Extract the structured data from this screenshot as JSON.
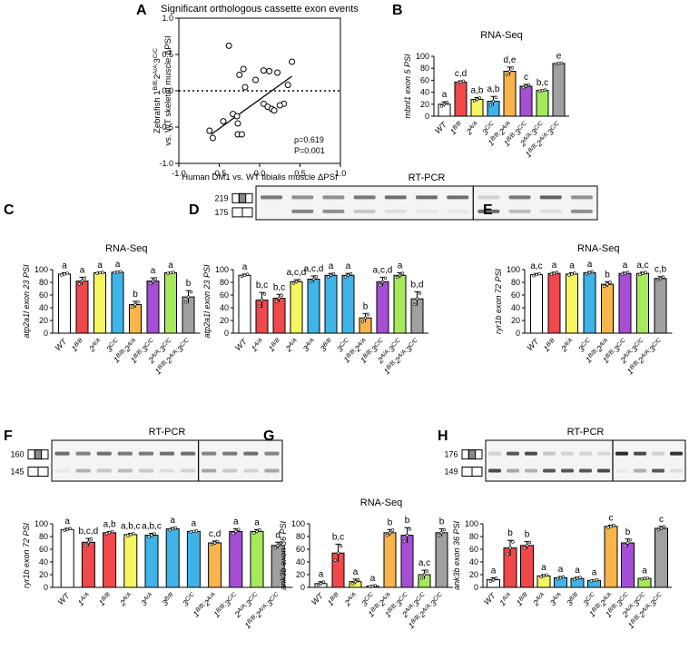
{
  "figure": {
    "panel_labels": [
      "A",
      "B",
      "C",
      "D",
      "E",
      "F",
      "G",
      "H"
    ],
    "gel_labels": {
      "D": {
        "title": "RT-PCR",
        "upper_size": "219",
        "lower_size": "175"
      },
      "F": {
        "title": "RT-PCR",
        "upper_size": "160",
        "lower_size": "145"
      },
      "H": {
        "title": "RT-PCR",
        "upper_size": "176",
        "lower_size": "149"
      }
    },
    "colors": {
      "WT": "#ffffff",
      "1B/B": "#f0484b",
      "2A/A": "#f5f560",
      "3C/C": "#3fb4e8",
      "1B/B;2A/A": "#f7b54b",
      "1B/B;3C/C": "#a64fd6",
      "2A/A;3C/C": "#a6e95a",
      "1B/B;2A/A;3C/C": "#a0a0a0",
      "1A/A": "#f0484b",
      "3A/A": "#3fb4e8",
      "3B/B": "#3fb4e8"
    }
  },
  "chart_data": [
    {
      "panel": "A",
      "type": "scatter",
      "title": "Significant orthologous cassette exon events",
      "xlabel": "Human DM1 vs. WT tibialis muscle ΔPSI",
      "ylabel_line1": "Zebrafish 1B/B;2A/A;3C/C",
      "ylabel_line2": "vs. WT skeletal muscle ΔPSI",
      "xlim": [
        -1.0,
        1.0
      ],
      "ylim": [
        -1.0,
        1.0
      ],
      "xticks": [
        "-1.0",
        "-0.5",
        "0.0",
        "0.5",
        "1.0"
      ],
      "yticks": [
        "-1.0",
        "-0.5",
        "0.0",
        "0.5",
        "1.0"
      ],
      "annotation": [
        "ρ=0.619",
        "P=0.001"
      ],
      "points": [
        [
          -0.38,
          0.62
        ],
        [
          -0.58,
          -0.65
        ],
        [
          -0.62,
          -0.55
        ],
        [
          -0.45,
          -0.42
        ],
        [
          -0.33,
          -0.32
        ],
        [
          -0.28,
          -0.35
        ],
        [
          -0.27,
          -0.45
        ],
        [
          -0.27,
          -0.6
        ],
        [
          -0.22,
          -0.6
        ],
        [
          -0.25,
          0.22
        ],
        [
          -0.2,
          0.3
        ],
        [
          -0.18,
          0.05
        ],
        [
          -0.05,
          0.15
        ],
        [
          0.05,
          0.28
        ],
        [
          0.12,
          0.27
        ],
        [
          0.22,
          0.25
        ],
        [
          0.4,
          0.4
        ],
        [
          0.35,
          0.08
        ],
        [
          0.3,
          -0.18
        ],
        [
          0.25,
          -0.2
        ],
        [
          0.05,
          -0.18
        ],
        [
          0.1,
          -0.22
        ],
        [
          0.15,
          -0.25
        ],
        [
          0.18,
          -0.27
        ]
      ],
      "fit_line": [
        [
          -0.6,
          -0.6
        ],
        [
          0.4,
          0.2
        ]
      ],
      "zero_line": true
    },
    {
      "panel": "B",
      "type": "bar",
      "title": "RNA-Seq",
      "ylabel": "mbnl1 exon 5 PSI",
      "ylim": [
        0,
        100
      ],
      "yticks": [
        "0",
        "20",
        "40",
        "60",
        "80",
        "100"
      ],
      "categories": [
        "WT",
        "1B/B",
        "2A/A",
        "3C/C",
        "1B/B;2A/A",
        "1B/B;3C/C",
        "2A/A;3C/C",
        "1B/B;2A/A;3C/C"
      ],
      "values": [
        20,
        57,
        28,
        25,
        75,
        50,
        43,
        88
      ],
      "errors": [
        4,
        2,
        3,
        8,
        7,
        3,
        1,
        1
      ],
      "letters": [
        "a",
        "c,d",
        "a,b",
        "a,b",
        "d,e",
        "c",
        "b,c",
        "e"
      ],
      "colors": [
        "#ffffff",
        "#f0484b",
        "#f5f560",
        "#3fb4e8",
        "#f7b54b",
        "#a64fd6",
        "#a6e95a",
        "#a0a0a0"
      ]
    },
    {
      "panel": "C",
      "type": "bar",
      "title": "RNA-Seq",
      "ylabel": "atp2a1l exon 23 PSI",
      "ylim": [
        0,
        100
      ],
      "yticks": [
        "0",
        "20",
        "40",
        "60",
        "80",
        "100"
      ],
      "categories": [
        "WT",
        "1B/B",
        "2A/A",
        "3C/C",
        "1B/B;2A/A",
        "1B/B;3C/C",
        "2A/A;3C/C",
        "1B/B;2A/A;3C/C"
      ],
      "values": [
        93,
        82,
        95,
        96,
        45,
        82,
        95,
        57
      ],
      "errors": [
        2,
        6,
        1,
        1,
        5,
        5,
        1,
        10
      ],
      "letters": [
        "a",
        "a",
        "a",
        "a",
        "b",
        "a",
        "a",
        "b"
      ],
      "colors": [
        "#ffffff",
        "#f0484b",
        "#f5f560",
        "#3fb4e8",
        "#f7b54b",
        "#a64fd6",
        "#a6e95a",
        "#a0a0a0"
      ]
    },
    {
      "panel": "D",
      "type": "bar",
      "ylabel": "atp2a1l exon 23 PSI",
      "ylim": [
        0,
        100
      ],
      "yticks": [
        "0",
        "20",
        "40",
        "60",
        "80",
        "100"
      ],
      "categories": [
        "WT",
        "1A/A",
        "1B/B",
        "2A/A",
        "3A/A",
        "3B/B",
        "3C/C",
        "1B/B;2A/A",
        "1B/B;3C/C",
        "2A/A;3C/C",
        "1B/B;2A/A;3C/C"
      ],
      "values": [
        91,
        52,
        55,
        81,
        85,
        91,
        91,
        24,
        81,
        91,
        54
      ],
      "errors": [
        2,
        12,
        6,
        3,
        5,
        3,
        3,
        7,
        7,
        4,
        11
      ],
      "letters": [
        "a",
        "b,c",
        "b,c",
        "a,c,d",
        "a,c,d",
        "a",
        "a",
        "b",
        "a,c,d",
        "a",
        "b,d"
      ],
      "colors": [
        "#ffffff",
        "#f0484b",
        "#f0484b",
        "#f5f560",
        "#3fb4e8",
        "#3fb4e8",
        "#3fb4e8",
        "#f7b54b",
        "#a64fd6",
        "#a6e95a",
        "#a0a0a0"
      ]
    },
    {
      "panel": "E",
      "type": "bar",
      "title": "RNA-Seq",
      "ylabel": "ryr1b exon 72 PSI",
      "ylim": [
        0,
        100
      ],
      "yticks": [
        "0",
        "20",
        "40",
        "60",
        "80",
        "100"
      ],
      "categories": [
        "WT",
        "1B/B",
        "2A/A",
        "3C/C",
        "1B/B;2A/A",
        "1B/B;3C/C",
        "2A/A;3C/C",
        "1B/B;2A/A;3C/C"
      ],
      "values": [
        92,
        94,
        93,
        95,
        77,
        94,
        94,
        86
      ],
      "errors": [
        2,
        2,
        2,
        2,
        4,
        2,
        2,
        3
      ],
      "letters": [
        "a,c",
        "a",
        "a",
        "a",
        "b",
        "a",
        "a,c",
        "c,b"
      ],
      "colors": [
        "#ffffff",
        "#f0484b",
        "#f5f560",
        "#3fb4e8",
        "#f7b54b",
        "#a64fd6",
        "#a6e95a",
        "#a0a0a0"
      ]
    },
    {
      "panel": "F",
      "type": "bar",
      "ylabel": "ryr1b exon 72 PSI",
      "ylim": [
        0,
        100
      ],
      "yticks": [
        "0",
        "20",
        "40",
        "60",
        "80",
        "100"
      ],
      "categories": [
        "WT",
        "1A/A",
        "1B/B",
        "2A/A",
        "3A/A",
        "3B/B",
        "3C/C",
        "1B/B;2A/A",
        "1B/B;3C/C",
        "2A/A;3C/C",
        "1B/B;2A/A;3C/C"
      ],
      "values": [
        91,
        71,
        86,
        83,
        82,
        92,
        88,
        70,
        88,
        88,
        66
      ],
      "errors": [
        2,
        6,
        2,
        2,
        3,
        2,
        1,
        3,
        4,
        3,
        5
      ],
      "letters": [
        "a",
        "b,c,d",
        "a,b",
        "a,b,c",
        "a,b,c",
        "a",
        "a",
        "c,d",
        "a",
        "a",
        "d"
      ],
      "colors": [
        "#ffffff",
        "#f0484b",
        "#f0484b",
        "#f5f560",
        "#3fb4e8",
        "#3fb4e8",
        "#3fb4e8",
        "#f7b54b",
        "#a64fd6",
        "#a6e95a",
        "#a0a0a0"
      ]
    },
    {
      "panel": "G",
      "type": "bar",
      "title": "RNA-Seq",
      "ylabel": "ank3b exon 36 PSI",
      "ylim": [
        0,
        100
      ],
      "yticks": [
        "0",
        "20",
        "40",
        "60",
        "80",
        "100"
      ],
      "categories": [
        "WT",
        "1B/B",
        "2A/A",
        "3C/C",
        "1B/B;2A/A",
        "1B/B;3C/C",
        "2A/A;3C/C",
        "1B/B;2A/A;3C/C"
      ],
      "values": [
        6,
        54,
        9,
        2,
        86,
        82,
        20,
        86
      ],
      "errors": [
        3,
        14,
        4,
        1,
        5,
        12,
        7,
        6
      ],
      "letters": [
        "a",
        "b,c",
        "a",
        "a",
        "b",
        "b",
        "a,c",
        "b"
      ],
      "colors": [
        "#ffffff",
        "#f0484b",
        "#f5f560",
        "#3fb4e8",
        "#f7b54b",
        "#a64fd6",
        "#a6e95a",
        "#a0a0a0"
      ]
    },
    {
      "panel": "H",
      "type": "bar",
      "ylabel": "ank3b exon 36 PSI",
      "ylim": [
        0,
        100
      ],
      "yticks": [
        "0",
        "20",
        "40",
        "60",
        "80",
        "100"
      ],
      "categories": [
        "WT",
        "1A/A",
        "1B/B",
        "2A/A",
        "3A/A",
        "3B/B",
        "3C/C",
        "1B/B;2A/A",
        "1B/B;3C/C",
        "2A/A;3C/C",
        "1B/B;2A/A;3C/C"
      ],
      "values": [
        12,
        62,
        66,
        18,
        15,
        14,
        11,
        96,
        70,
        14,
        93
      ],
      "errors": [
        3,
        12,
        6,
        2,
        2,
        2,
        1,
        2,
        6,
        1,
        3
      ],
      "letters": [
        "a",
        "b",
        "b",
        "a",
        "a",
        "a",
        "a",
        "c",
        "b",
        "a",
        "c"
      ],
      "colors": [
        "#ffffff",
        "#f0484b",
        "#f0484b",
        "#f5f560",
        "#3fb4e8",
        "#3fb4e8",
        "#3fb4e8",
        "#f7b54b",
        "#a64fd6",
        "#a6e95a",
        "#a0a0a0"
      ]
    }
  ]
}
